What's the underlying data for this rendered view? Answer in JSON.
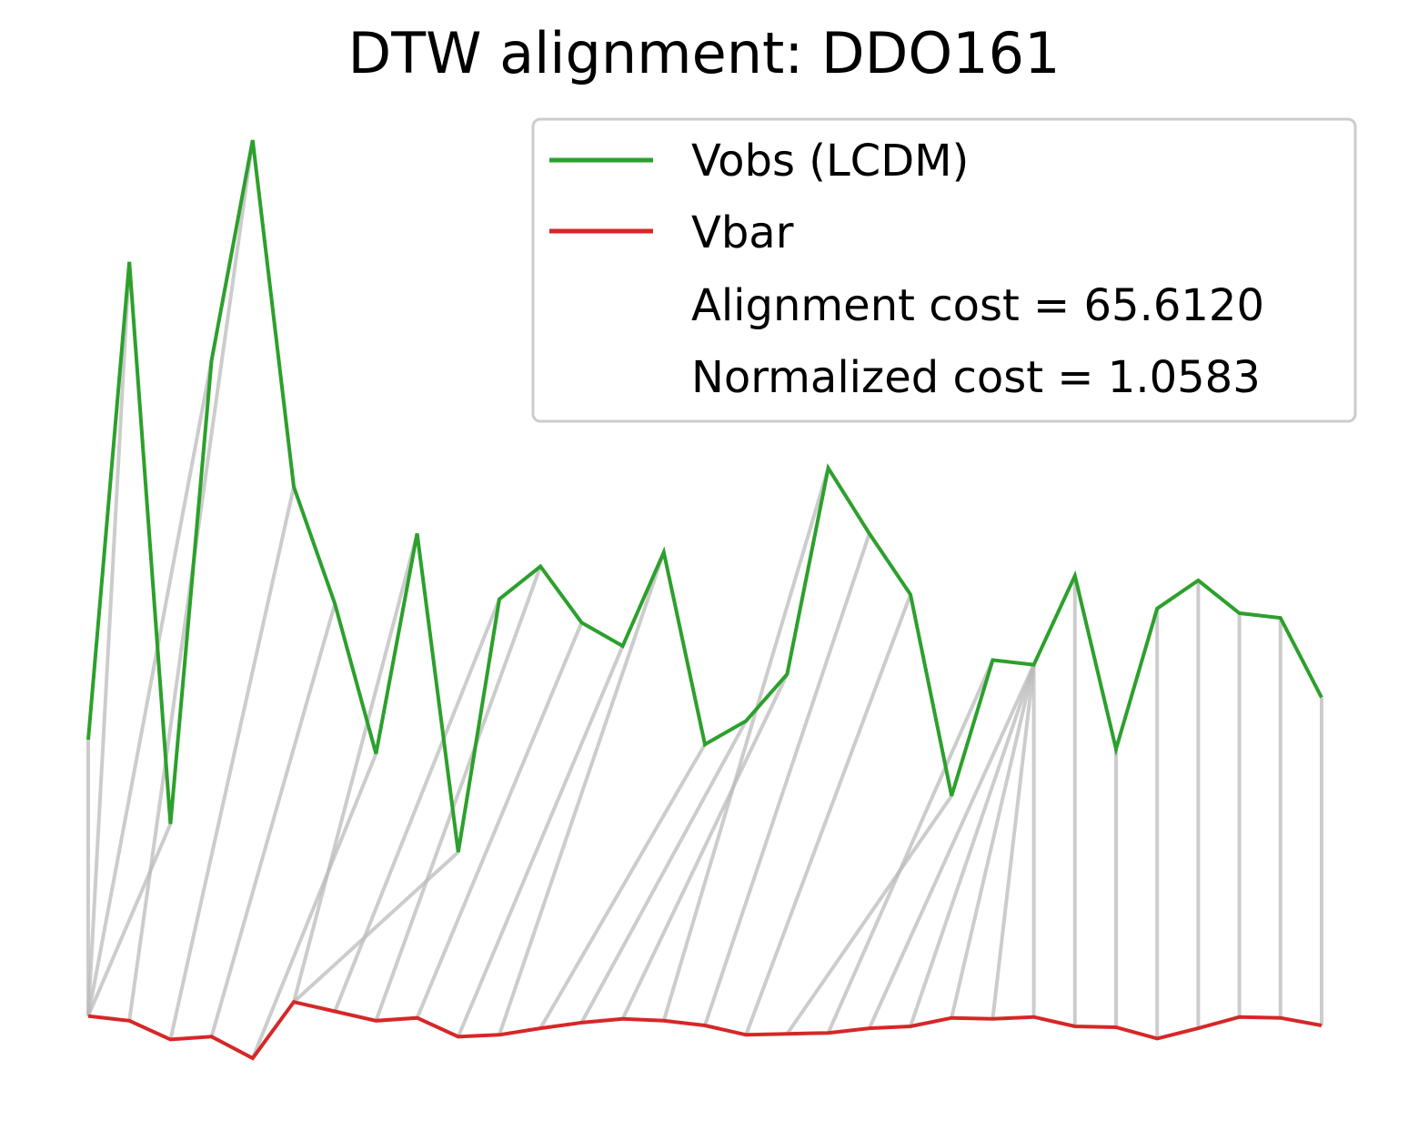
{
  "chart_data": {
    "type": "line",
    "title": "DTW alignment: DDO161",
    "xlabel": "",
    "ylabel": "",
    "axes_visible": false,
    "grid": false,
    "legend_position": "top-right",
    "colors": {
      "vobs": "#2ca02c",
      "vbar": "#d62728",
      "connector": "#bbbbbb"
    },
    "series": [
      {
        "name": "Vobs (LCDM)",
        "values": [
          0.2,
          5.3,
          -0.7,
          4.25,
          6.6,
          2.9,
          1.65,
          0.05,
          2.4,
          -1.0,
          1.7,
          2.05,
          1.45,
          1.2,
          2.2,
          0.15,
          0.4,
          0.9,
          3.1,
          2.4,
          1.75,
          -0.4,
          1.05,
          1.0,
          1.95,
          0.1,
          1.6,
          1.9,
          1.55,
          1.5,
          0.65
        ]
      },
      {
        "name": "Vbar",
        "values": [
          -2.75,
          -2.8,
          -3.0,
          -2.97,
          -3.2,
          -2.6,
          -2.7,
          -2.8,
          -2.77,
          -2.97,
          -2.95,
          -2.88,
          -2.82,
          -2.78,
          -2.8,
          -2.85,
          -2.95,
          -2.94,
          -2.93,
          -2.88,
          -2.86,
          -2.77,
          -2.78,
          -2.76,
          -2.86,
          -2.87,
          -2.99,
          -2.88,
          -2.76,
          -2.77,
          -2.85
        ]
      }
    ],
    "legend_entries": [
      "Vobs (LCDM)",
      "Vbar",
      "Alignment cost = 65.6120",
      "Normalized cost = 1.0583"
    ],
    "alignment_path": [
      [
        0,
        0
      ],
      [
        1,
        0
      ],
      [
        2,
        0
      ],
      [
        3,
        0
      ],
      [
        4,
        1
      ],
      [
        5,
        2
      ],
      [
        6,
        3
      ],
      [
        7,
        4
      ],
      [
        8,
        5
      ],
      [
        9,
        5
      ],
      [
        10,
        6
      ],
      [
        11,
        7
      ],
      [
        12,
        8
      ],
      [
        13,
        9
      ],
      [
        14,
        10
      ],
      [
        15,
        11
      ],
      [
        16,
        12
      ],
      [
        17,
        13
      ],
      [
        18,
        14
      ],
      [
        19,
        15
      ],
      [
        20,
        16
      ],
      [
        21,
        17
      ],
      [
        22,
        18
      ],
      [
        23,
        19
      ],
      [
        23,
        20
      ],
      [
        23,
        21
      ],
      [
        23,
        22
      ],
      [
        23,
        23
      ],
      [
        24,
        24
      ],
      [
        25,
        25
      ],
      [
        26,
        26
      ],
      [
        27,
        27
      ],
      [
        28,
        28
      ],
      [
        29,
        29
      ],
      [
        30,
        30
      ]
    ]
  }
}
